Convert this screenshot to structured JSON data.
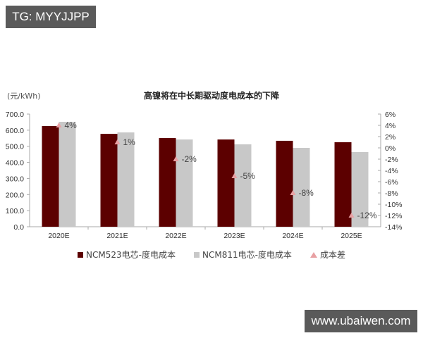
{
  "watermarks": {
    "top_left": "TG: MYYJJPP",
    "bottom_right": "www.ubaiwen.com"
  },
  "chart_data": {
    "type": "bar",
    "title": "高镍将在中长期驱动度电成本的下降",
    "ylabel": "(元/kWh)",
    "y2label": "",
    "categories": [
      "2020E",
      "2021E",
      "2022E",
      "2023E",
      "2024E",
      "2025E"
    ],
    "ylim": [
      0,
      700
    ],
    "yticks": [
      "700.0",
      "600.0",
      "500.0",
      "400.0",
      "300.0",
      "200.0",
      "100.0",
      "0.0"
    ],
    "y2lim": [
      -14,
      6
    ],
    "y2ticks": [
      "6%",
      "4%",
      "2%",
      "0%",
      "-2%",
      "-4%",
      "-6%",
      "-8%",
      "-10%",
      "-12%",
      "-14%"
    ],
    "series": [
      {
        "name": "NCM523电芯-度电成本",
        "type": "bar",
        "axis": "left",
        "color": "#5c0000",
        "values": [
          626,
          577,
          551,
          542,
          534,
          525
        ]
      },
      {
        "name": "NCM811电芯-度电成本",
        "type": "bar",
        "axis": "left",
        "color": "#c8c8c8",
        "values": [
          652,
          586,
          542,
          512,
          490,
          464
        ]
      },
      {
        "name": "成本差",
        "type": "scatter",
        "axis": "right",
        "color": "#e8a0a3",
        "marker": "triangle",
        "values": [
          4,
          1,
          -2,
          -5,
          -8,
          -12
        ],
        "labels": [
          "4%",
          "1%",
          "-2%",
          "-5%",
          "-8%",
          "-12%"
        ]
      }
    ],
    "legend_position": "bottom",
    "grid": false
  }
}
